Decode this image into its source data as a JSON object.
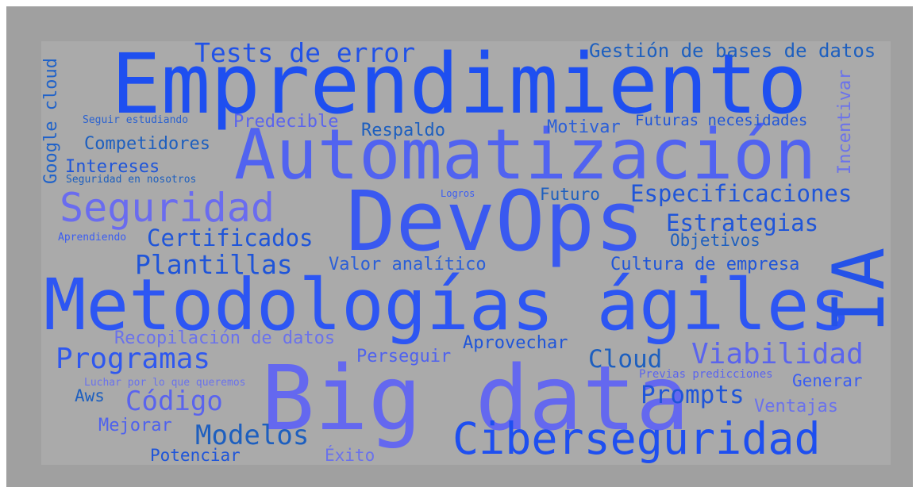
{
  "colors": {
    "frame": "#a0a0a0",
    "canvas": "#aaaaaa",
    "blue_bright": "#1e4ff0",
    "blue_medium": "#3b5df2",
    "blue_periwinkle": "#5e65f0",
    "blue_cobalt": "#1f55d9",
    "blue_teal": "#1d5fbf",
    "blue_light": "#6a78e8"
  },
  "words": {
    "emprendimiento": "Emprendimiento",
    "automatizacion": "Automatización",
    "devops": "DevOps",
    "metodologias": "Metodologías ágiles",
    "big_data": "Big data",
    "ia": "IA",
    "ciberseguridad": "Ciberseguridad",
    "seguridad": "Seguridad",
    "tests": "Tests de error",
    "gestion": "Gestión de bases de datos",
    "google_cloud": "Google cloud",
    "incentivar": "Incentivar",
    "seguir_estudiando": "Seguir estudiando",
    "predecible": "Predecible",
    "respaldo": "Respaldo",
    "motivar": "Motivar",
    "futuras": "Futuras necesidades",
    "competidores": "Competidores",
    "intereses": "Intereses",
    "seguridad_nosotros": "Seguridad en nosotros",
    "logros": "Logros",
    "futuro": "Futuro",
    "especificaciones": "Especificaciones",
    "estrategias": "Estrategias",
    "aprendiendo": "Aprendiendo",
    "certificados": "Certificados",
    "objetivos": "Objetivos",
    "plantillas": "Plantillas",
    "valor": "Valor analítico",
    "cultura": "Cultura de empresa",
    "recopilacion": "Recopilación de datos",
    "aprovechar": "Aprovechar",
    "programas": "Programas",
    "perseguir": "Perseguir",
    "cloud": "Cloud",
    "viabilidad": "Viabilidad",
    "luchar": "Luchar por lo que queremos",
    "previas": "Previas predicciones",
    "generar": "Generar",
    "aws": "Aws",
    "codigo": "Código",
    "prompts": "Prompts",
    "ventajas": "Ventajas",
    "mejorar": "Mejorar",
    "modelos": "Modelos",
    "potenciar": "Potenciar",
    "exito": "Éxito"
  }
}
